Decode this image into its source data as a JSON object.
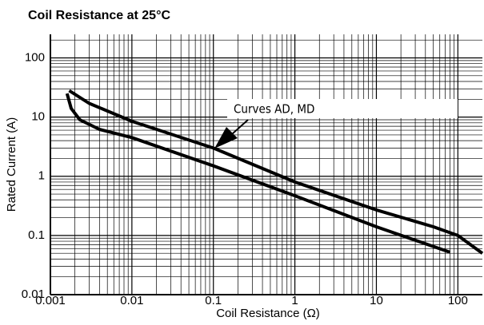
{
  "chart_data": {
    "type": "line",
    "title": "Coil Resistance at 25°C",
    "xlabel": "Coil Resistance (Ω)",
    "ylabel": "Rated Current (A)",
    "xscale": "log",
    "yscale": "log",
    "xlim": [
      0.001,
      200
    ],
    "ylim": [
      0.01,
      250
    ],
    "xticks": [
      0.001,
      0.01,
      0.1,
      1,
      10,
      100
    ],
    "yticks": [
      0.01,
      0.1,
      1,
      10,
      100
    ],
    "grid": true,
    "annotation": {
      "text": "Curves AD, MD"
    },
    "series": [
      {
        "color": "#000000",
        "x": [
          0.0017,
          0.003,
          0.01,
          0.1,
          1,
          10,
          50,
          100,
          200
        ],
        "values": [
          28,
          17,
          8.5,
          3,
          0.8,
          0.27,
          0.14,
          0.1,
          0.05
        ]
      },
      {
        "color": "#000000",
        "x": [
          0.0016,
          0.0018,
          0.0023,
          0.004,
          0.01,
          0.1,
          1,
          10,
          80
        ],
        "values": [
          25,
          14,
          9,
          6.2,
          4.5,
          1.5,
          0.47,
          0.14,
          0.052
        ]
      }
    ]
  }
}
